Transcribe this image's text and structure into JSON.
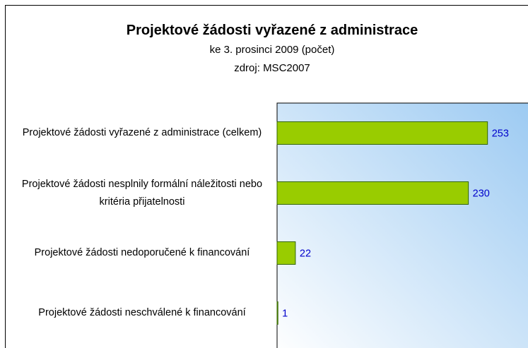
{
  "chart_data": {
    "type": "bar",
    "orientation": "horizontal",
    "title": "Projektové žádosti vyřazené z administrace",
    "subtitle": [
      "ke 3. prosinci 2009 (počet)",
      "zdroj: MSC2007"
    ],
    "categories": [
      "Projektové žádosti vyřazené z administrace (celkem)",
      "Projektové žádosti nesplnily formální náležitosti nebo kritéria přijatelnosti",
      "Projektové žádosti nedoporučené k financování",
      "Projektové žádosti neschválené k financování"
    ],
    "values": [
      253,
      230,
      22,
      1
    ],
    "color": "#99cc00",
    "xlim": [
      0,
      300
    ]
  }
}
